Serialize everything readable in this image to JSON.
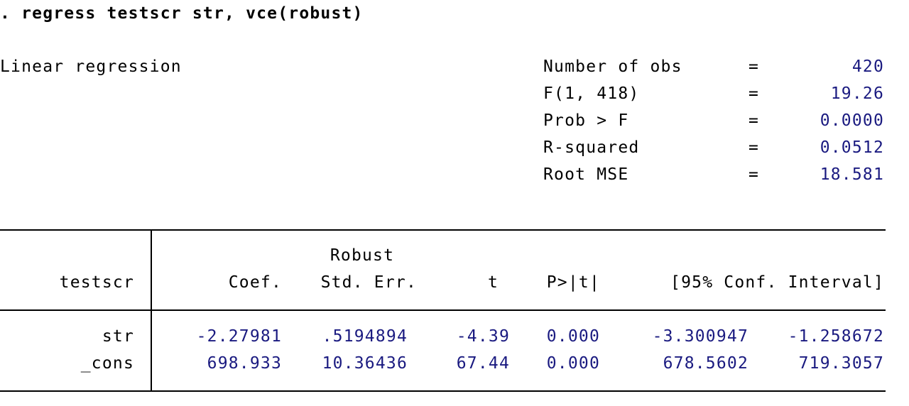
{
  "command": ". regress testscr str, vce(robust)",
  "model_title": "Linear regression",
  "stats": [
    {
      "label": "Number of obs",
      "eq": "=",
      "value": "420"
    },
    {
      "label": "F(1, 418)",
      "eq": "=",
      "value": "19.26"
    },
    {
      "label": "Prob > F",
      "eq": "=",
      "value": "0.0000"
    },
    {
      "label": "R-squared",
      "eq": "=",
      "value": "0.0512"
    },
    {
      "label": "Root MSE",
      "eq": "=",
      "value": "18.581"
    }
  ],
  "table": {
    "depvar": "testscr",
    "robust_label": "Robust",
    "headers": [
      "Coef.",
      "Std. Err.",
      "t",
      "P>|t|",
      "[95% Conf. Interval]"
    ],
    "rows": [
      {
        "name": "str",
        "coef": "-2.27981",
        "se": ".5194894",
        "t": "-4.39",
        "p": "0.000",
        "ci_low": "-3.300947",
        "ci_high": "-1.258672"
      },
      {
        "name": "_cons",
        "coef": "698.933",
        "se": "10.36436",
        "t": "67.44",
        "p": "0.000",
        "ci_low": "678.5602",
        "ci_high": "719.3057"
      }
    ]
  },
  "colors": {
    "text": "#000000",
    "numbers": "#1a1a80",
    "background": "#ffffff"
  }
}
